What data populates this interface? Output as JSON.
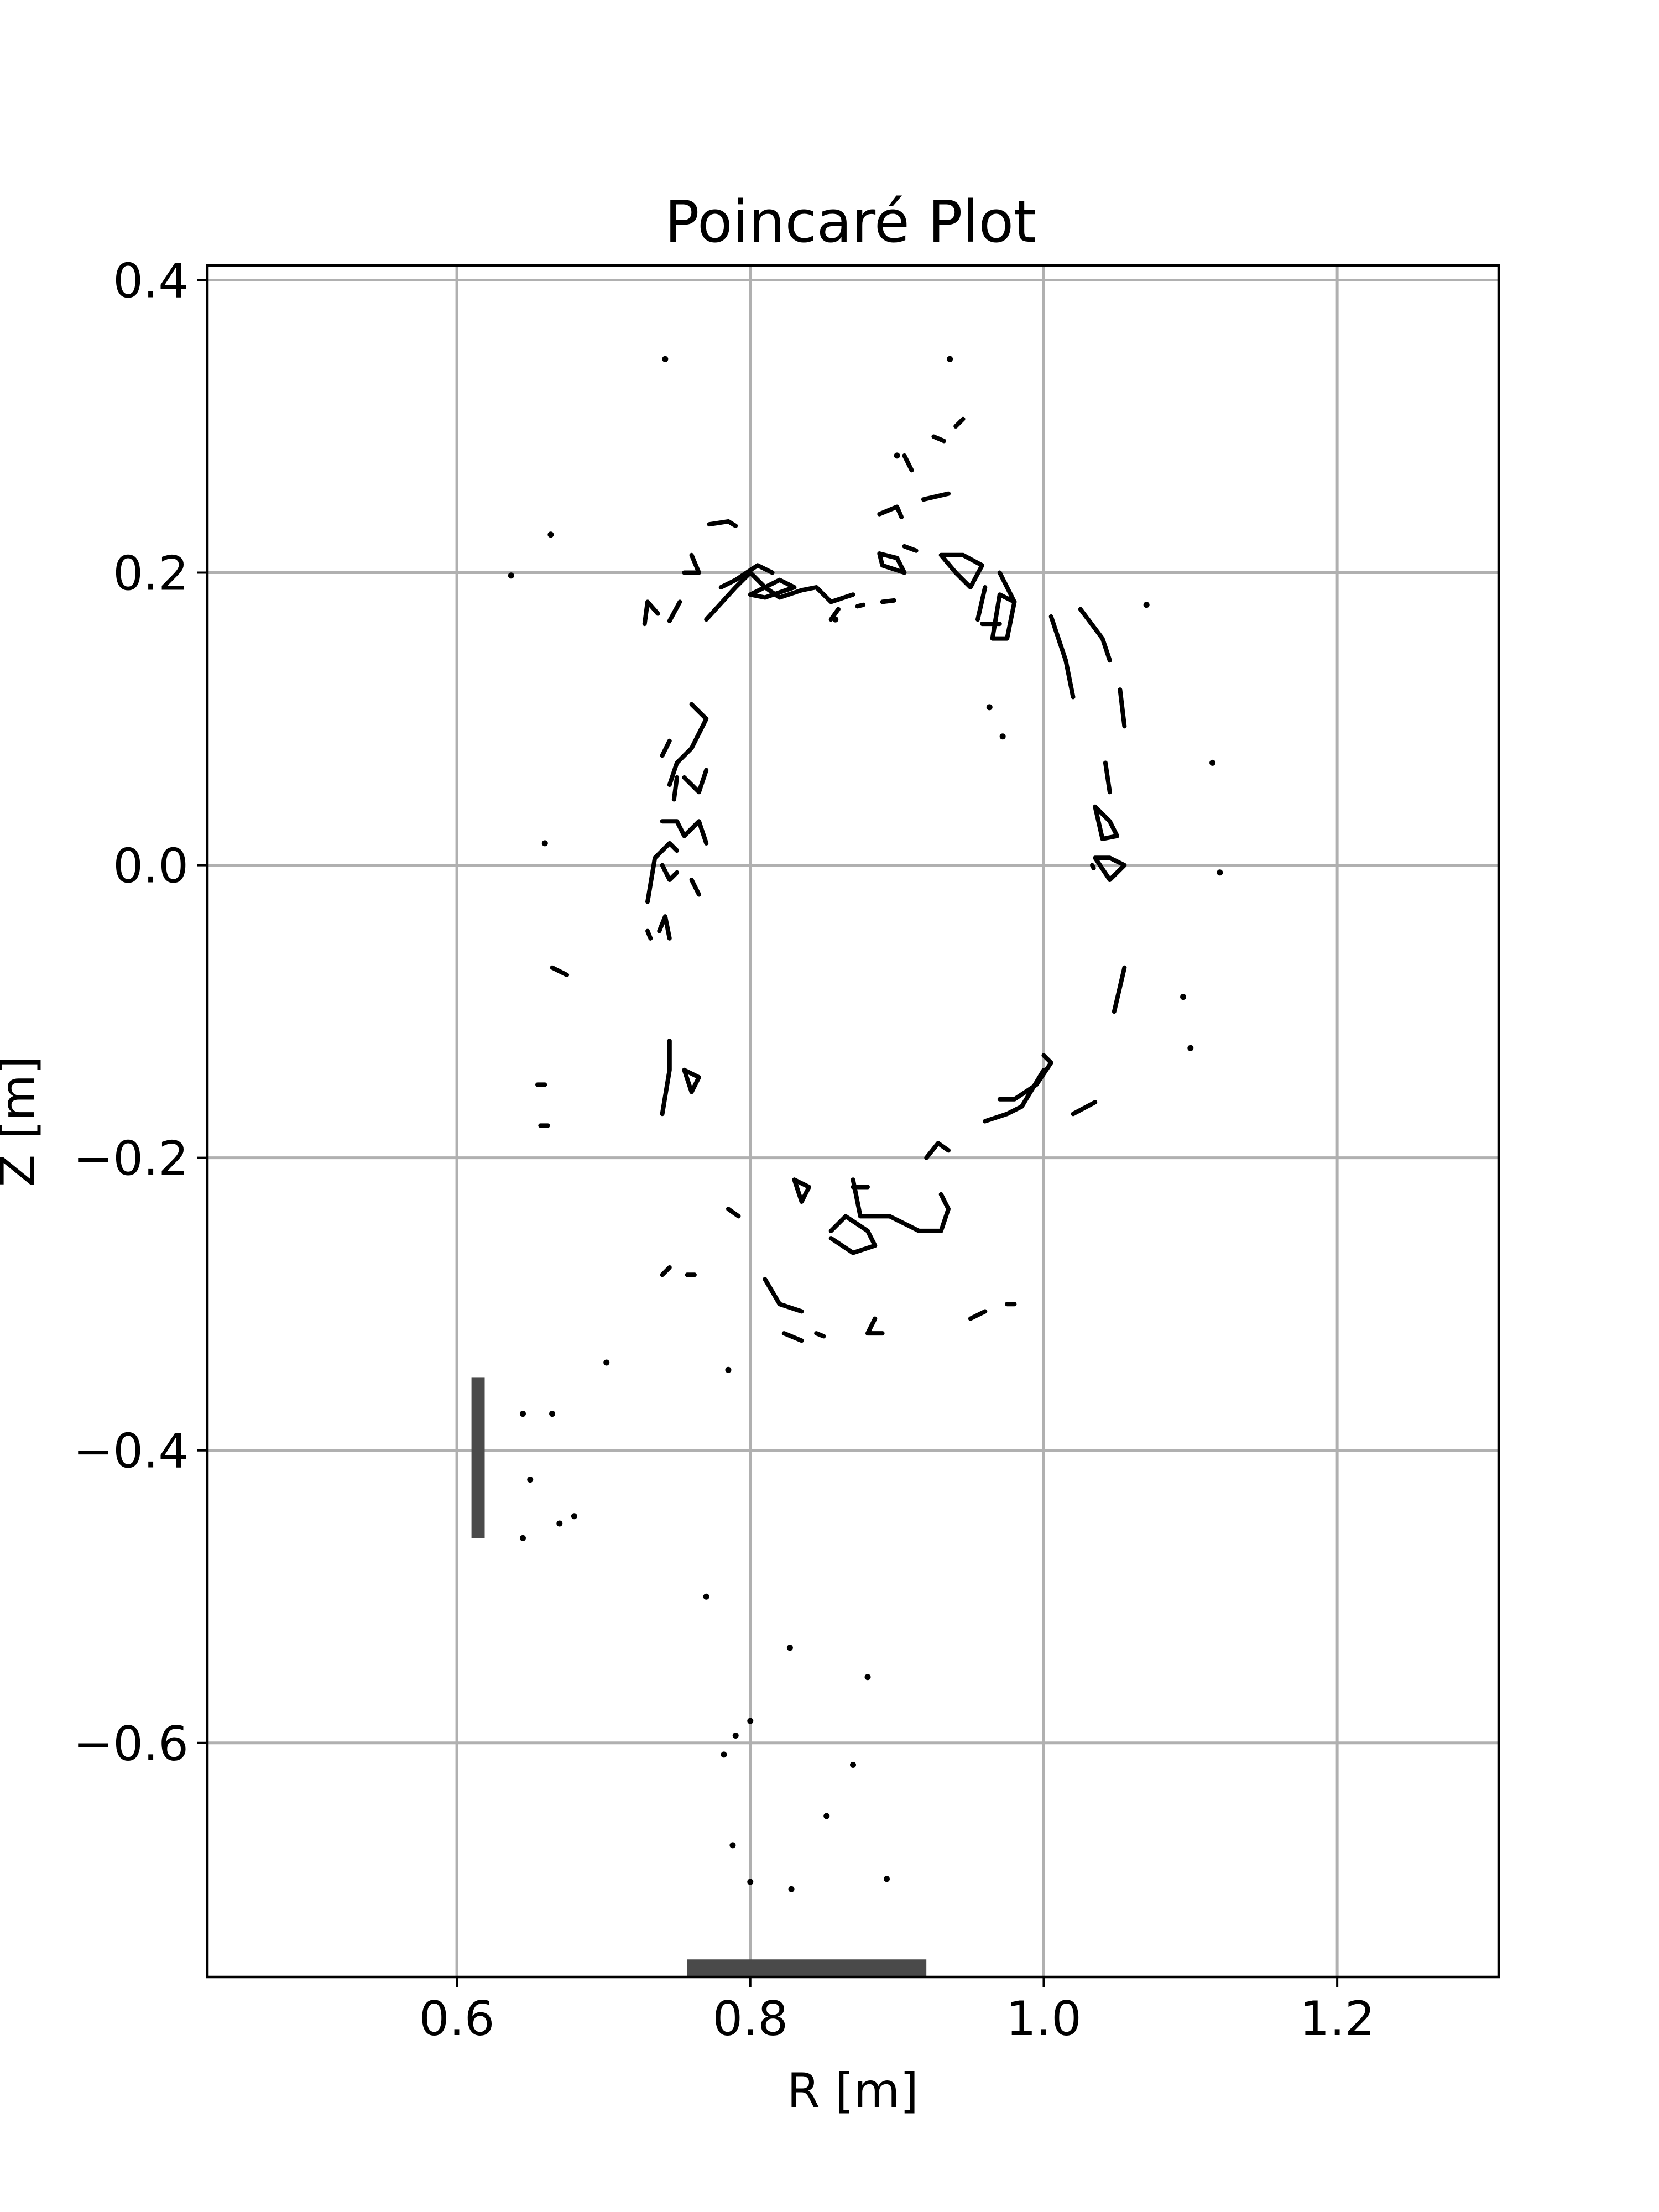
{
  "chart_data": {
    "type": "scatter",
    "title": "Poincaré Plot",
    "xlabel": "R [m]",
    "ylabel": "Z [m]",
    "xlim": [
      0.43,
      1.31
    ],
    "ylim": [
      -0.76,
      0.41
    ],
    "x_ticks": [
      0.6,
      0.8,
      1.0,
      1.2
    ],
    "x_tick_labels": [
      "0.6",
      "0.8",
      "1.0",
      "1.2"
    ],
    "y_ticks": [
      0.4,
      0.2,
      0.0,
      -0.2,
      -0.4,
      -0.6
    ],
    "y_tick_labels": [
      "0.4",
      "0.2",
      "0.0",
      "−0.2",
      "−0.4",
      "−0.6"
    ],
    "grid": true,
    "line_color": "#000000",
    "wall_color": "#4a4a4a",
    "walls": [
      {
        "r": [
          0.61,
          0.619
        ],
        "z": [
          -0.46,
          -0.35
        ]
      },
      {
        "r": [
          0.757,
          0.92
        ],
        "z": [
          -0.76,
          -0.748
        ]
      }
    ],
    "series": [
      {
        "points": [
          [
            0.728,
            0.165
          ],
          [
            0.73,
            0.18
          ],
          [
            0.737,
            0.172
          ]
        ]
      },
      {
        "points": [
          [
            0.745,
            0.167
          ],
          [
            0.752,
            0.18
          ]
        ]
      },
      {
        "points": [
          [
            0.755,
            0.2
          ],
          [
            0.765,
            0.2
          ],
          [
            0.76,
            0.212
          ]
        ]
      },
      {
        "points": [
          [
            0.77,
            0.168
          ],
          [
            0.79,
            0.19
          ],
          [
            0.8,
            0.2
          ],
          [
            0.81,
            0.19
          ],
          [
            0.82,
            0.183
          ],
          [
            0.835,
            0.188
          ],
          [
            0.845,
            0.19
          ],
          [
            0.855,
            0.18
          ],
          [
            0.87,
            0.185
          ]
        ]
      },
      {
        "points": [
          [
            0.8,
            0.185
          ],
          [
            0.82,
            0.195
          ],
          [
            0.83,
            0.19
          ],
          [
            0.81,
            0.183
          ],
          [
            0.8,
            0.185
          ]
        ]
      },
      {
        "points": [
          [
            0.78,
            0.19
          ],
          [
            0.79,
            0.195
          ],
          [
            0.805,
            0.205
          ],
          [
            0.815,
            0.2
          ]
        ]
      },
      {
        "points": [
          [
            0.855,
            0.168
          ],
          [
            0.86,
            0.175
          ]
        ]
      },
      {
        "points": [
          [
            0.873,
            0.177
          ],
          [
            0.877,
            0.178
          ]
        ]
      },
      {
        "points": [
          [
            0.89,
            0.18
          ],
          [
            0.898,
            0.181
          ]
        ]
      },
      {
        "points": [
          [
            0.888,
            0.213
          ],
          [
            0.9,
            0.21
          ],
          [
            0.905,
            0.2
          ],
          [
            0.89,
            0.205
          ],
          [
            0.888,
            0.213
          ]
        ]
      },
      {
        "points": [
          [
            0.93,
            0.212
          ],
          [
            0.94,
            0.2
          ],
          [
            0.95,
            0.19
          ],
          [
            0.958,
            0.205
          ],
          [
            0.945,
            0.212
          ],
          [
            0.93,
            0.212
          ]
        ]
      },
      {
        "points": [
          [
            0.955,
            0.168
          ],
          [
            0.96,
            0.19
          ]
        ]
      },
      {
        "points": [
          [
            0.965,
            0.155
          ],
          [
            0.97,
            0.185
          ],
          [
            0.98,
            0.18
          ],
          [
            0.975,
            0.155
          ],
          [
            0.965,
            0.155
          ]
        ]
      },
      {
        "points": [
          [
            0.958,
            0.165
          ],
          [
            0.97,
            0.165
          ]
        ]
      },
      {
        "points": [
          [
            0.772,
            0.233
          ],
          [
            0.785,
            0.235
          ],
          [
            0.79,
            0.232
          ]
        ]
      },
      {
        "points": [
          [
            0.888,
            0.24
          ],
          [
            0.9,
            0.245
          ],
          [
            0.903,
            0.238
          ]
        ]
      },
      {
        "points": [
          [
            0.905,
            0.28
          ],
          [
            0.91,
            0.27
          ]
        ]
      },
      {
        "points": [
          [
            0.918,
            0.25
          ],
          [
            0.935,
            0.254
          ]
        ]
      },
      {
        "points": [
          [
            0.925,
            0.293
          ],
          [
            0.932,
            0.29
          ]
        ]
      },
      {
        "points": [
          [
            0.94,
            0.3
          ],
          [
            0.945,
            0.305
          ]
        ]
      },
      {
        "points": [
          [
            0.905,
            0.218
          ],
          [
            0.913,
            0.215
          ]
        ]
      },
      {
        "points": [
          [
            0.97,
            0.2
          ],
          [
            0.98,
            0.18
          ]
        ]
      },
      {
        "points": [
          [
            1.005,
            0.17
          ],
          [
            1.015,
            0.14
          ],
          [
            1.02,
            0.115
          ]
        ]
      },
      {
        "points": [
          [
            1.025,
            0.175
          ],
          [
            1.04,
            0.155
          ],
          [
            1.045,
            0.14
          ]
        ]
      },
      {
        "points": [
          [
            1.052,
            0.12
          ],
          [
            1.055,
            0.095
          ]
        ]
      },
      {
        "points": [
          [
            1.042,
            0.07
          ],
          [
            1.045,
            0.05
          ]
        ]
      },
      {
        "points": [
          [
            1.035,
            0.04
          ],
          [
            1.045,
            0.03
          ],
          [
            1.05,
            0.02
          ],
          [
            1.04,
            0.018
          ],
          [
            1.035,
            0.04
          ]
        ]
      },
      {
        "points": [
          [
            1.035,
            0.005
          ],
          [
            1.045,
            -0.01
          ],
          [
            1.055,
            0.0
          ],
          [
            1.045,
            0.005
          ],
          [
            1.035,
            0.005
          ]
        ]
      },
      {
        "points": [
          [
            1.033,
            0.0
          ],
          [
            1.034,
            -0.002
          ]
        ]
      },
      {
        "points": [
          [
            1.048,
            -0.1
          ],
          [
            1.055,
            -0.07
          ]
        ]
      },
      {
        "points": [
          [
            0.76,
            0.11
          ],
          [
            0.77,
            0.1
          ],
          [
            0.76,
            0.08
          ],
          [
            0.75,
            0.07
          ],
          [
            0.745,
            0.055
          ]
        ]
      },
      {
        "points": [
          [
            0.74,
            0.075
          ],
          [
            0.745,
            0.085
          ]
        ]
      },
      {
        "points": [
          [
            0.755,
            0.06
          ],
          [
            0.765,
            0.05
          ],
          [
            0.77,
            0.065
          ]
        ]
      },
      {
        "points": [
          [
            0.748,
            0.045
          ],
          [
            0.75,
            0.06
          ]
        ]
      },
      {
        "points": [
          [
            0.74,
            0.03
          ],
          [
            0.75,
            0.03
          ],
          [
            0.755,
            0.02
          ],
          [
            0.765,
            0.03
          ],
          [
            0.77,
            0.015
          ]
        ]
      },
      {
        "points": [
          [
            0.74,
            0.0
          ],
          [
            0.745,
            -0.01
          ],
          [
            0.75,
            -0.005
          ]
        ]
      },
      {
        "points": [
          [
            0.73,
            -0.025
          ],
          [
            0.735,
            0.005
          ],
          [
            0.745,
            0.015
          ],
          [
            0.75,
            0.01
          ]
        ]
      },
      {
        "points": [
          [
            0.73,
            -0.045
          ],
          [
            0.732,
            -0.05
          ]
        ]
      },
      {
        "points": [
          [
            0.738,
            -0.045
          ],
          [
            0.742,
            -0.035
          ],
          [
            0.745,
            -0.05
          ]
        ]
      },
      {
        "points": [
          [
            0.76,
            -0.01
          ],
          [
            0.765,
            -0.02
          ]
        ]
      },
      {
        "points": [
          [
            0.745,
            -0.12
          ],
          [
            0.745,
            -0.14
          ],
          [
            0.74,
            -0.17
          ]
        ]
      },
      {
        "points": [
          [
            0.755,
            -0.14
          ],
          [
            0.76,
            -0.155
          ],
          [
            0.765,
            -0.145
          ],
          [
            0.755,
            -0.14
          ]
        ]
      },
      {
        "points": [
          [
            0.675,
            -0.075
          ],
          [
            0.665,
            -0.07
          ]
        ]
      },
      {
        "points": [
          [
            0.655,
            -0.15
          ],
          [
            0.66,
            -0.15
          ]
        ]
      },
      {
        "points": [
          [
            0.657,
            -0.178
          ],
          [
            0.662,
            -0.178
          ]
        ]
      },
      {
        "points": [
          [
            1.0,
            -0.13
          ],
          [
            1.005,
            -0.135
          ],
          [
            0.995,
            -0.15
          ],
          [
            0.98,
            -0.16
          ],
          [
            0.97,
            -0.16
          ]
        ]
      },
      {
        "points": [
          [
            0.96,
            -0.175
          ],
          [
            0.975,
            -0.17
          ],
          [
            0.985,
            -0.165
          ],
          [
            1.0,
            -0.14
          ]
        ]
      },
      {
        "points": [
          [
            1.02,
            -0.17
          ],
          [
            1.035,
            -0.162
          ]
        ]
      },
      {
        "points": [
          [
            0.92,
            -0.2
          ],
          [
            0.928,
            -0.19
          ],
          [
            0.935,
            -0.195
          ]
        ]
      },
      {
        "points": [
          [
            0.87,
            -0.215
          ],
          [
            0.875,
            -0.24
          ],
          [
            0.895,
            -0.24
          ],
          [
            0.905,
            -0.245
          ],
          [
            0.915,
            -0.25
          ],
          [
            0.93,
            -0.25
          ],
          [
            0.935,
            -0.235
          ],
          [
            0.93,
            -0.225
          ]
        ]
      },
      {
        "points": [
          [
            0.87,
            -0.22
          ],
          [
            0.88,
            -0.22
          ]
        ]
      },
      {
        "points": [
          [
            0.855,
            -0.25
          ],
          [
            0.865,
            -0.24
          ],
          [
            0.88,
            -0.25
          ],
          [
            0.885,
            -0.26
          ],
          [
            0.87,
            -0.265
          ],
          [
            0.855,
            -0.255
          ]
        ]
      },
      {
        "points": [
          [
            0.83,
            -0.215
          ],
          [
            0.835,
            -0.23
          ],
          [
            0.84,
            -0.22
          ],
          [
            0.83,
            -0.215
          ]
        ]
      },
      {
        "points": [
          [
            0.785,
            -0.235
          ],
          [
            0.792,
            -0.24
          ]
        ]
      },
      {
        "points": [
          [
            0.74,
            -0.28
          ],
          [
            0.745,
            -0.275
          ]
        ]
      },
      {
        "points": [
          [
            0.757,
            -0.28
          ],
          [
            0.762,
            -0.28
          ]
        ]
      },
      {
        "points": [
          [
            0.81,
            -0.283
          ],
          [
            0.82,
            -0.3
          ],
          [
            0.835,
            -0.305
          ]
        ]
      },
      {
        "points": [
          [
            0.823,
            -0.32
          ],
          [
            0.835,
            -0.325
          ]
        ]
      },
      {
        "points": [
          [
            0.845,
            -0.32
          ],
          [
            0.85,
            -0.322
          ]
        ]
      },
      {
        "points": [
          [
            0.885,
            -0.31
          ],
          [
            0.88,
            -0.32
          ],
          [
            0.89,
            -0.32
          ]
        ]
      },
      {
        "points": [
          [
            0.95,
            -0.31
          ],
          [
            0.96,
            -0.305
          ]
        ]
      },
      {
        "points": [
          [
            0.975,
            -0.3
          ],
          [
            0.98,
            -0.3
          ]
        ]
      }
    ],
    "points": [
      [
        0.742,
        0.346
      ],
      [
        0.936,
        0.346
      ],
      [
        0.664,
        0.226
      ],
      [
        0.637,
        0.198
      ],
      [
        0.9,
        0.28
      ],
      [
        0.858,
        0.168
      ],
      [
        0.963,
        0.108
      ],
      [
        0.972,
        0.088
      ],
      [
        1.07,
        0.178
      ],
      [
        1.115,
        0.07
      ],
      [
        1.12,
        -0.005
      ],
      [
        0.66,
        0.015
      ],
      [
        1.095,
        -0.09
      ],
      [
        1.1,
        -0.125
      ],
      [
        0.702,
        -0.34
      ],
      [
        0.785,
        -0.345
      ],
      [
        0.645,
        -0.375
      ],
      [
        0.665,
        -0.375
      ],
      [
        0.65,
        -0.42
      ],
      [
        0.67,
        -0.45
      ],
      [
        0.68,
        -0.445
      ],
      [
        0.645,
        -0.46
      ],
      [
        0.77,
        -0.5
      ],
      [
        0.8,
        -0.585
      ],
      [
        0.827,
        -0.535
      ],
      [
        0.88,
        -0.555
      ],
      [
        0.87,
        -0.615
      ],
      [
        0.852,
        -0.65
      ],
      [
        0.788,
        -0.67
      ],
      [
        0.8,
        -0.695
      ],
      [
        0.828,
        -0.7
      ],
      [
        0.893,
        -0.693
      ],
      [
        0.782,
        -0.608
      ],
      [
        0.79,
        -0.595
      ]
    ]
  }
}
